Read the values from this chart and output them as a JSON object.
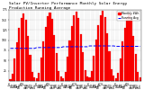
{
  "title": "Solar PV/Inverter Performance Monthly Solar Energy Production Running Average",
  "bar_color": "#FF0000",
  "avg_color": "#0000FF",
  "background_color": "#FFFFFF",
  "grid_color": "#888888",
  "monthly_values": [
    5,
    18,
    55,
    95,
    130,
    155,
    165,
    150,
    110,
    65,
    22,
    8,
    6,
    20,
    58,
    98,
    133,
    158,
    168,
    153,
    113,
    68,
    24,
    10,
    7,
    22,
    60,
    100,
    135,
    160,
    170,
    155,
    115,
    70,
    26,
    12,
    8,
    24,
    62,
    102,
    137,
    162,
    172,
    157,
    117,
    72,
    28,
    14,
    6,
    19,
    56,
    96,
    131,
    156,
    166,
    151,
    111,
    66,
    23,
    9
  ],
  "running_avg": [
    80,
    80,
    80,
    80,
    80,
    80,
    80,
    80,
    80,
    80,
    80,
    80,
    82,
    82,
    82,
    82,
    82,
    82,
    82,
    82,
    82,
    82,
    82,
    82,
    84,
    84,
    84,
    84,
    84,
    84,
    84,
    84,
    84,
    84,
    84,
    84,
    86,
    86,
    86,
    86,
    86,
    86,
    86,
    86,
    86,
    86,
    86,
    86,
    85,
    85,
    85,
    85,
    85,
    85,
    85,
    85,
    85,
    85,
    85,
    85
  ],
  "ylim": [
    0,
    175
  ],
  "ytick_values": [
    25,
    50,
    75,
    100,
    125,
    150,
    175
  ],
  "ytick_labels": [
    "25",
    "50",
    "75",
    "100",
    "125",
    "150",
    "175"
  ],
  "n_bars": 60,
  "x_tick_every": 1,
  "title_fontsize": 3.2,
  "tick_fontsize": 2.2,
  "legend_fontsize": 2.2,
  "bar_width": 0.85,
  "avg_linewidth": 0.7,
  "avg_linestyle": "--"
}
